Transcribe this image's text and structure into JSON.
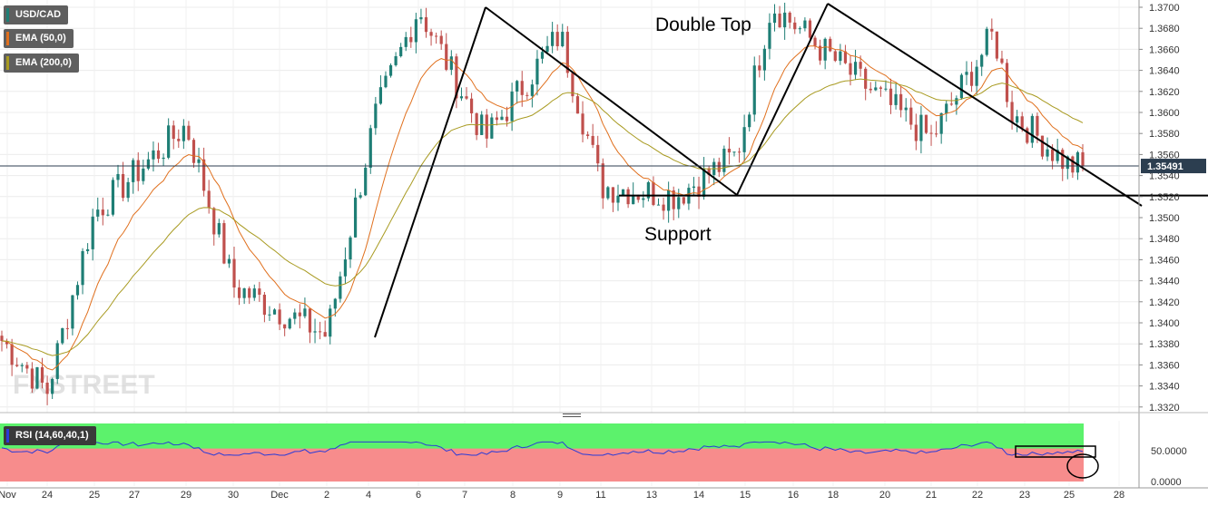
{
  "legend": {
    "symbol": "USD/CAD",
    "ema50": "EMA (50,0)",
    "ema200": "EMA (200,0)",
    "rsi": "RSI (14,60,40,1)"
  },
  "colors": {
    "bull": "#1e7e75",
    "bear": "#c0504d",
    "ema50": "#e0701e",
    "ema200": "#a89a20",
    "rsi_line": "#2a3bd8",
    "rsi_upper_zone": "#5cf26c",
    "rsi_lower_zone": "#f78c8c",
    "price_tag": "#2c3e50"
  },
  "watermark": "FXSTREET",
  "annotations": {
    "double_top": "Double Top",
    "support": "Support"
  },
  "price_axis": {
    "ticks": [
      "1.3700",
      "1.3680",
      "1.3660",
      "1.3640",
      "1.3620",
      "1.3600",
      "1.3580",
      "1.3560",
      "1.3540",
      "1.3520",
      "1.3500",
      "1.3480",
      "1.3460",
      "1.3440",
      "1.3420",
      "1.3400",
      "1.3380",
      "1.3360",
      "1.3340",
      "1.3320"
    ],
    "last_price_label": "1.35491"
  },
  "rsi_axis": {
    "ticks": [
      "50.0000",
      "0.0000"
    ]
  },
  "x_axis": {
    "labels": [
      "Nov",
      "24",
      "25",
      "27",
      "29",
      "30",
      "Dec",
      "2",
      "4",
      "6",
      "7",
      "8",
      "9",
      "11",
      "13",
      "14",
      "15",
      "16",
      "18",
      "20",
      "21",
      "22",
      "23",
      "25",
      "28"
    ]
  },
  "chart_data": {
    "type": "candlestick",
    "symbol": "USD/CAD",
    "ylim": [
      1.3315,
      1.3705
    ],
    "last_price": 1.35491,
    "support_level": 1.3521,
    "rsi": {
      "params": "RSI (14,60,40,1)",
      "upper": 60,
      "lower": 40,
      "ylim": [
        0,
        100
      ]
    },
    "key_points": [
      {
        "label": "Nov 23",
        "close": 1.3385
      },
      {
        "label": "Nov 25",
        "close": 1.3335
      },
      {
        "label": "Nov 29",
        "close": 1.3505
      },
      {
        "label": "Nov 30",
        "close": 1.3588
      },
      {
        "label": "Dec 2",
        "close": 1.3435
      },
      {
        "label": "Dec 4",
        "close": 1.3388
      },
      {
        "label": "Dec 6",
        "close": 1.3595
      },
      {
        "label": "Dec 7",
        "close": 1.37
      },
      {
        "label": "Dec 9",
        "close": 1.3575
      },
      {
        "label": "Dec 11",
        "close": 1.3675
      },
      {
        "label": "Dec 13",
        "close": 1.353
      },
      {
        "label": "Dec 14",
        "close": 1.3521
      },
      {
        "label": "Dec 15",
        "close": 1.356
      },
      {
        "label": "Dec 17",
        "close": 1.3703
      },
      {
        "label": "Dec 20",
        "close": 1.3655
      },
      {
        "label": "Dec 21",
        "close": 1.361
      },
      {
        "label": "Dec 22",
        "close": 1.3575
      },
      {
        "label": "Dec 23",
        "close": 1.3675
      },
      {
        "label": "Dec 25",
        "close": 1.36
      },
      {
        "label": "Dec 26",
        "close": 1.35491
      }
    ]
  }
}
